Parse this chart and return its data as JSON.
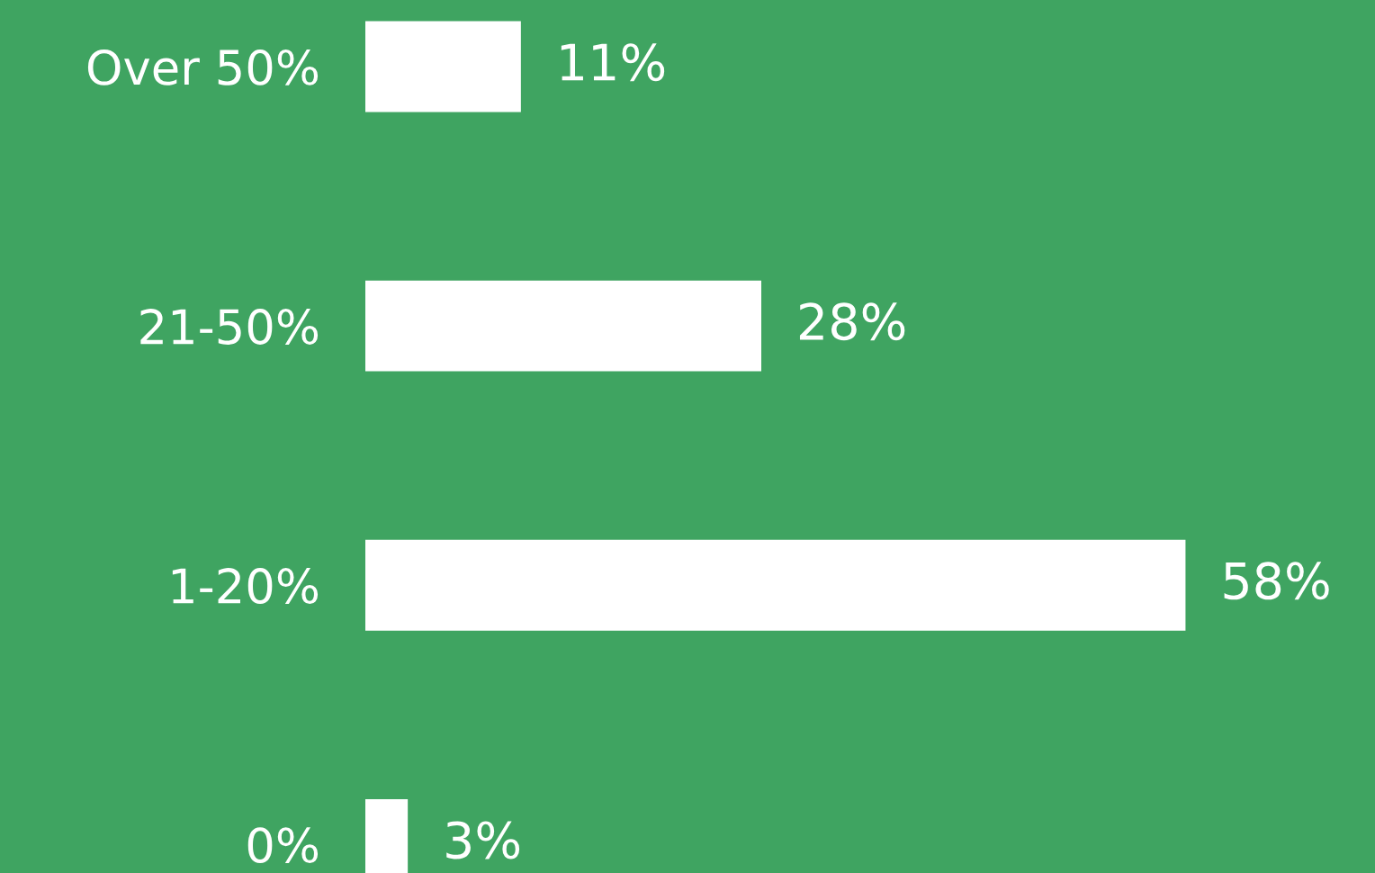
{
  "chart_data": {
    "type": "bar",
    "orientation": "horizontal",
    "categories": [
      "Over 50%",
      "21-50%",
      "1-20%",
      "0%"
    ],
    "values": [
      11,
      28,
      58,
      3
    ],
    "color": "#ffffff",
    "data_labels": true,
    "value_labels": [
      "11%",
      "28%",
      "58%",
      "3%"
    ],
    "tick_labels": "y",
    "grid": false,
    "legend": false
  }
}
